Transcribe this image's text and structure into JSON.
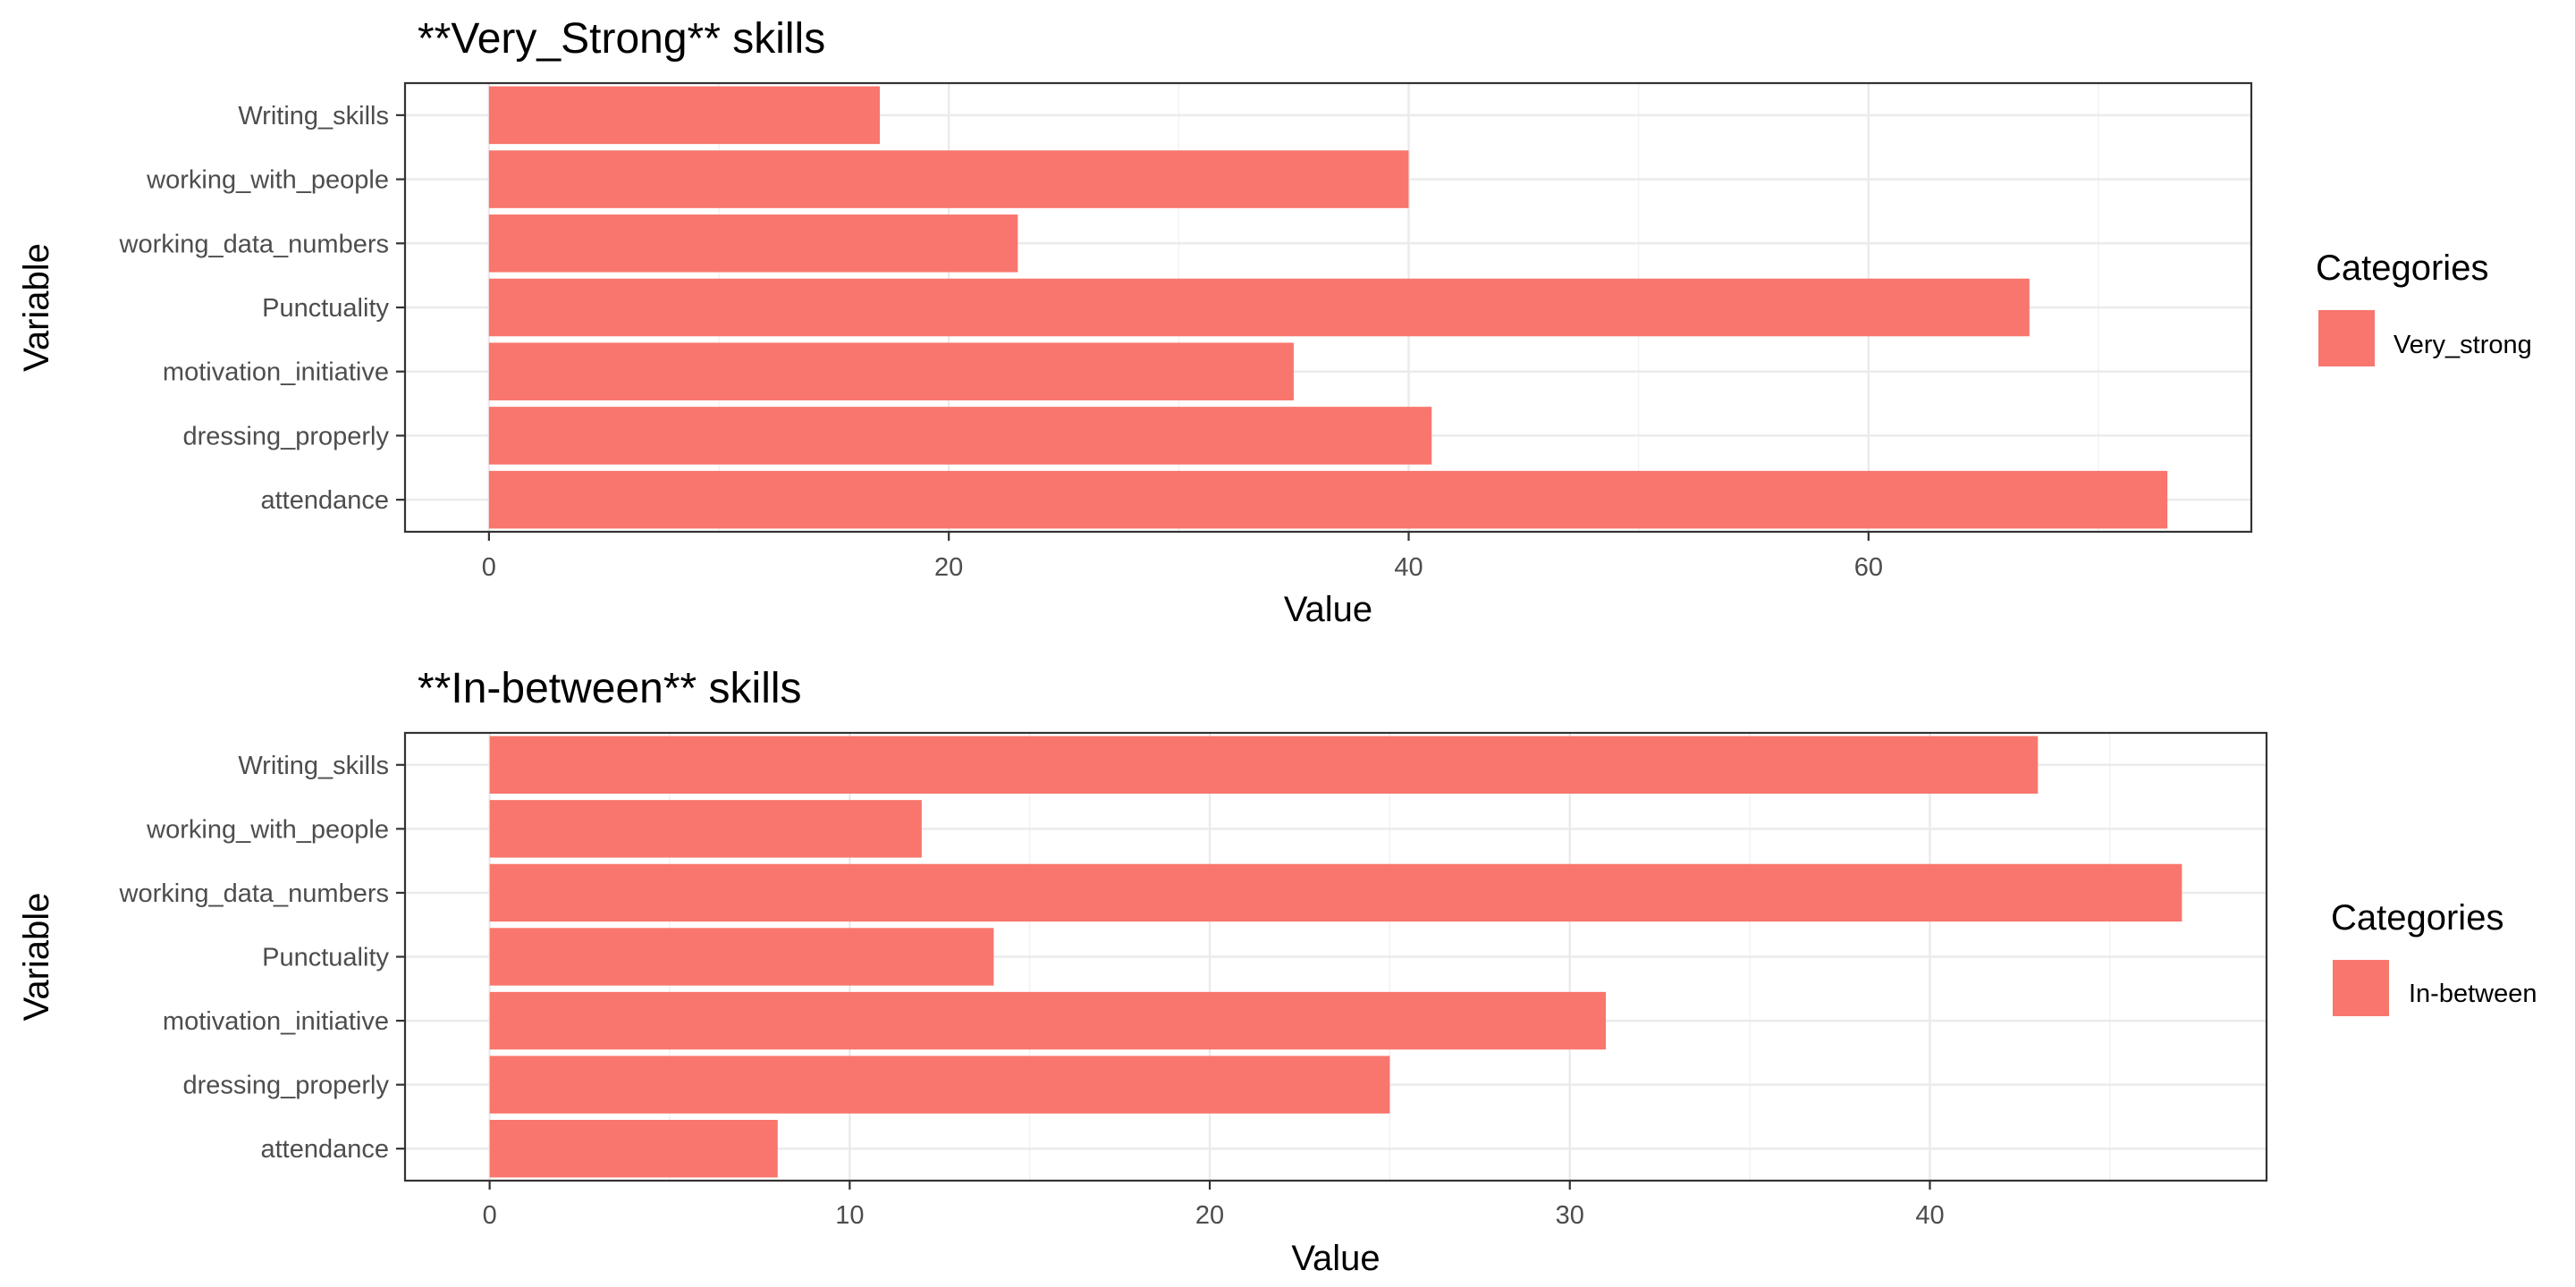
{
  "chart_data": [
    {
      "type": "bar",
      "orientation": "horizontal",
      "title": "**Very_Strong** skills",
      "xlabel": "Value",
      "ylabel": "Variable",
      "categories": [
        "attendance",
        "dressing_properly",
        "motivation_initiative",
        "Punctuality",
        "working_data_numbers",
        "working_with_people",
        "Writing_skills"
      ],
      "series": [
        {
          "name": "Very_strong",
          "values": [
            73,
            41,
            35,
            67,
            23,
            40,
            17
          ]
        }
      ],
      "xlim": [
        -3.65,
        76.65
      ],
      "xticks": [
        "0",
        "20",
        "40",
        "60"
      ],
      "xtick_values": [
        0,
        20,
        40,
        60
      ],
      "minor_grid": [
        10,
        30,
        50,
        70
      ],
      "grid": true,
      "legend": {
        "title": "Categories",
        "position": "right",
        "labels": [
          "Very_strong"
        ]
      },
      "color": "#F8766D"
    },
    {
      "type": "bar",
      "orientation": "horizontal",
      "title": "**In-between** skills",
      "xlabel": "Value",
      "ylabel": "Variable",
      "categories": [
        "attendance",
        "dressing_properly",
        "motivation_initiative",
        "Punctuality",
        "working_data_numbers",
        "working_with_people",
        "Writing_skills"
      ],
      "series": [
        {
          "name": "In-between",
          "values": [
            8,
            25,
            31,
            14,
            47,
            12,
            43
          ]
        }
      ],
      "xlim": [
        -2.35,
        49.35
      ],
      "xticks": [
        "0",
        "10",
        "20",
        "30",
        "40"
      ],
      "xtick_values": [
        0,
        10,
        20,
        30,
        40
      ],
      "minor_grid": [
        5,
        15,
        25,
        35,
        45
      ],
      "grid": true,
      "legend": {
        "title": "Categories",
        "position": "right",
        "labels": [
          "In-between"
        ]
      },
      "color": "#F8766D"
    }
  ]
}
